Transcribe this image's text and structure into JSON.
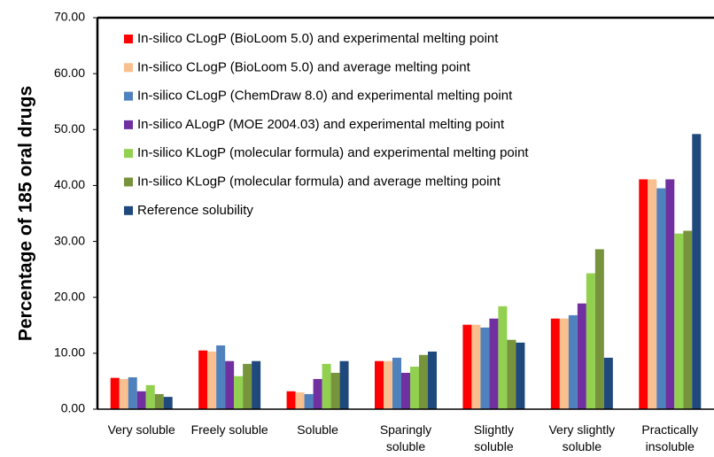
{
  "chart_data": {
    "type": "bar",
    "ylabel": "Percentage of 185 oral drugs",
    "categories": [
      "Very soluble",
      "Freely soluble",
      "Soluble",
      "Sparingly soluble",
      "Slightly soluble",
      "Very slightly soluble",
      "Practically insoluble"
    ],
    "series": [
      {
        "name": "In-silico CLogP (BioLoom 5.0) and experimental melting point",
        "color": "#ff0000",
        "values": [
          5.6,
          10.5,
          3.2,
          8.6,
          15.1,
          16.2,
          41.1
        ]
      },
      {
        "name": "In-silico CLogP (BioLoom 5.0) and average melting point",
        "color": "#fabf8f",
        "values": [
          5.4,
          10.3,
          3.0,
          8.6,
          15.1,
          16.2,
          41.1
        ]
      },
      {
        "name": "In-silico CLogP (ChemDraw 8.0) and experimental melting point",
        "color": "#4f81bd",
        "values": [
          5.7,
          11.4,
          2.7,
          9.2,
          14.6,
          16.8,
          39.5
        ]
      },
      {
        "name": "In-silico ALogP (MOE 2004.03) and experimental melting point",
        "color": "#7030a0",
        "values": [
          3.2,
          8.6,
          5.4,
          6.5,
          16.2,
          18.9,
          41.1
        ]
      },
      {
        "name": "In-silico KLogP (molecular formula) and experimental melting point",
        "color": "#92d050",
        "values": [
          4.3,
          5.9,
          8.1,
          7.6,
          18.4,
          24.3,
          31.4
        ]
      },
      {
        "name": "In-silico KLogP (molecular formula) and average melting point",
        "color": "#77933c",
        "values": [
          2.7,
          8.1,
          6.5,
          9.7,
          12.4,
          28.6,
          31.9
        ]
      },
      {
        "name": "Reference solubility",
        "color": "#1f497d",
        "values": [
          2.2,
          8.6,
          8.6,
          10.3,
          11.9,
          9.2,
          49.2
        ]
      }
    ],
    "ylim": [
      0,
      70
    ],
    "yticks": [
      {
        "value": 0,
        "label": "0.00"
      },
      {
        "value": 10,
        "label": "10.00"
      },
      {
        "value": 20,
        "label": "20.00"
      },
      {
        "value": 30,
        "label": "30.00"
      },
      {
        "value": 40,
        "label": "40.00"
      },
      {
        "value": 50,
        "label": "50.00"
      },
      {
        "value": 60,
        "label": "60.00"
      },
      {
        "value": 70,
        "label": "70.00"
      }
    ],
    "legend": "top-left",
    "grid": false
  }
}
